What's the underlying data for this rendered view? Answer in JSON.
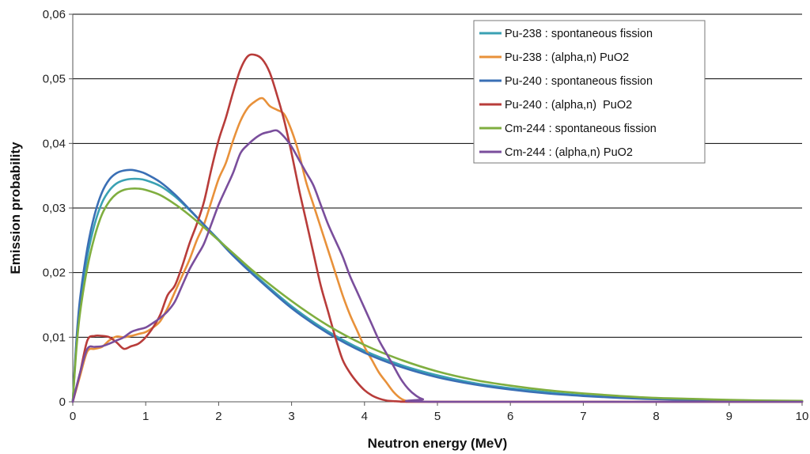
{
  "chart_data": {
    "type": "line",
    "xlabel": "Neutron energy (MeV)",
    "ylabel": "Emission probability",
    "xlim": [
      0,
      10
    ],
    "ylim": [
      0,
      0.06
    ],
    "x_ticks": [
      "0",
      "1",
      "2",
      "3",
      "4",
      "5",
      "6",
      "7",
      "8",
      "9",
      "10"
    ],
    "y_ticks": [
      "0",
      "0,01",
      "0,02",
      "0,03",
      "0,04",
      "0,05",
      "0,06"
    ],
    "grid": "horizontal",
    "legend_position": "top-right",
    "series": [
      {
        "name": "Pu-238 : spontaneous fission",
        "color": "#3aa1b3",
        "x": [
          0,
          0.05,
          0.1,
          0.2,
          0.3,
          0.4,
          0.5,
          0.6,
          0.7,
          0.8,
          0.9,
          1.0,
          1.2,
          1.4,
          1.6,
          1.8,
          2.0,
          2.2,
          2.5,
          3.0,
          3.5,
          4.0,
          4.5,
          5.0,
          5.5,
          6.0,
          6.5,
          7.0,
          7.5,
          8.0,
          8.5,
          9.0,
          9.5,
          10
        ],
        "y": [
          0,
          0.009,
          0.015,
          0.0225,
          0.0275,
          0.0308,
          0.0327,
          0.0338,
          0.0343,
          0.0345,
          0.0345,
          0.0343,
          0.0334,
          0.0318,
          0.0297,
          0.0274,
          0.0251,
          0.0228,
          0.0196,
          0.0148,
          0.0109,
          0.0079,
          0.0057,
          0.0041,
          0.0029,
          0.0021,
          0.0015,
          0.001,
          0.0007,
          0.0005,
          0.00035,
          0.00025,
          0.00017,
          0.0001
        ]
      },
      {
        "name": "Pu-238 : (alpha,n) PuO2",
        "color": "#e8913a",
        "x": [
          0,
          0.1,
          0.2,
          0.3,
          0.4,
          0.5,
          0.6,
          0.7,
          0.8,
          0.9,
          1.0,
          1.1,
          1.2,
          1.3,
          1.4,
          1.5,
          1.6,
          1.7,
          1.8,
          1.9,
          2.0,
          2.1,
          2.2,
          2.3,
          2.4,
          2.5,
          2.6,
          2.7,
          2.8,
          2.9,
          3.0,
          3.1,
          3.2,
          3.3,
          3.4,
          3.5,
          3.6,
          3.7,
          3.8,
          3.9,
          4.0,
          4.1,
          4.2,
          4.3,
          4.4,
          4.5,
          4.6,
          4.8,
          5.0,
          10
        ],
        "y": [
          0,
          0.004,
          0.0078,
          0.0082,
          0.0085,
          0.0095,
          0.0101,
          0.01,
          0.0102,
          0.0105,
          0.0108,
          0.0115,
          0.0125,
          0.0145,
          0.017,
          0.0195,
          0.022,
          0.025,
          0.0275,
          0.031,
          0.0345,
          0.037,
          0.0405,
          0.0435,
          0.0455,
          0.0465,
          0.047,
          0.0458,
          0.0452,
          0.0445,
          0.042,
          0.0385,
          0.034,
          0.0305,
          0.027,
          0.0235,
          0.02,
          0.0165,
          0.0135,
          0.011,
          0.0085,
          0.0065,
          0.0045,
          0.003,
          0.0015,
          0.0005,
          0.0001,
          0,
          0,
          0
        ]
      },
      {
        "name": "Pu-240 : spontaneous fission",
        "color": "#3a6fb5",
        "x": [
          0,
          0.05,
          0.1,
          0.2,
          0.3,
          0.4,
          0.5,
          0.6,
          0.7,
          0.8,
          0.9,
          1.0,
          1.2,
          1.4,
          1.6,
          1.8,
          2.0,
          2.2,
          2.5,
          3.0,
          3.5,
          4.0,
          4.5,
          5.0,
          5.5,
          6.0,
          6.5,
          7.0,
          7.5,
          8.0,
          8.5,
          9.0,
          9.5,
          10
        ],
        "y": [
          0,
          0.0095,
          0.016,
          0.0238,
          0.029,
          0.0324,
          0.0344,
          0.0354,
          0.0358,
          0.0359,
          0.0357,
          0.0353,
          0.034,
          0.0321,
          0.0298,
          0.0274,
          0.025,
          0.0226,
          0.0194,
          0.0145,
          0.0106,
          0.0076,
          0.0054,
          0.0038,
          0.0027,
          0.0019,
          0.0013,
          0.0009,
          0.0006,
          0.0004,
          0.00028,
          0.0002,
          0.00013,
          0.0001
        ]
      },
      {
        "name": "Pu-240 : (alpha,n)  PuO2",
        "color": "#b83c3a",
        "x": [
          0,
          0.1,
          0.2,
          0.3,
          0.4,
          0.5,
          0.6,
          0.7,
          0.8,
          0.9,
          1.0,
          1.1,
          1.2,
          1.3,
          1.4,
          1.5,
          1.6,
          1.7,
          1.8,
          1.9,
          2.0,
          2.1,
          2.2,
          2.3,
          2.4,
          2.5,
          2.6,
          2.7,
          2.8,
          2.9,
          3.0,
          3.1,
          3.2,
          3.3,
          3.4,
          3.5,
          3.6,
          3.7,
          3.8,
          3.9,
          4.0,
          4.1,
          4.2,
          4.3,
          4.4,
          4.6,
          5.0,
          10
        ],
        "y": [
          0,
          0.0045,
          0.0095,
          0.0102,
          0.0102,
          0.01,
          0.0092,
          0.0082,
          0.0086,
          0.009,
          0.01,
          0.0115,
          0.0135,
          0.0165,
          0.018,
          0.021,
          0.0245,
          0.0275,
          0.031,
          0.036,
          0.0405,
          0.044,
          0.048,
          0.0515,
          0.0535,
          0.0537,
          0.053,
          0.051,
          0.0475,
          0.0435,
          0.0385,
          0.033,
          0.028,
          0.023,
          0.018,
          0.014,
          0.01,
          0.0065,
          0.0045,
          0.003,
          0.0018,
          0.001,
          0.0005,
          0.0002,
          0.0001,
          0,
          0,
          0
        ]
      },
      {
        "name": "Cm-244 : spontaneous fission",
        "color": "#7fae3f",
        "x": [
          0,
          0.05,
          0.1,
          0.2,
          0.3,
          0.4,
          0.5,
          0.6,
          0.7,
          0.8,
          0.9,
          1.0,
          1.2,
          1.4,
          1.6,
          1.8,
          2.0,
          2.2,
          2.5,
          3.0,
          3.5,
          4.0,
          4.5,
          5.0,
          5.5,
          6.0,
          6.5,
          7.0,
          7.5,
          8.0,
          8.5,
          9.0,
          9.5,
          10
        ],
        "y": [
          0,
          0.0082,
          0.0138,
          0.0208,
          0.0256,
          0.029,
          0.031,
          0.0322,
          0.0328,
          0.033,
          0.033,
          0.0328,
          0.032,
          0.0306,
          0.0289,
          0.027,
          0.025,
          0.023,
          0.02,
          0.0156,
          0.0118,
          0.0088,
          0.0065,
          0.0047,
          0.0034,
          0.0025,
          0.0018,
          0.0013,
          0.0009,
          0.0006,
          0.00045,
          0.0003,
          0.0002,
          0.00015
        ]
      },
      {
        "name": "Cm-244 : (alpha,n) PuO2",
        "color": "#7a4e9c",
        "x": [
          0,
          0.1,
          0.2,
          0.3,
          0.4,
          0.5,
          0.6,
          0.7,
          0.8,
          0.9,
          1.0,
          1.1,
          1.2,
          1.3,
          1.4,
          1.5,
          1.6,
          1.7,
          1.8,
          1.9,
          2.0,
          2.1,
          2.2,
          2.3,
          2.4,
          2.5,
          2.6,
          2.7,
          2.8,
          2.9,
          3.0,
          3.1,
          3.2,
          3.3,
          3.4,
          3.5,
          3.6,
          3.7,
          3.8,
          3.9,
          4.0,
          4.1,
          4.2,
          4.3,
          4.4,
          4.5,
          4.6,
          4.7,
          4.8,
          5.0,
          10
        ],
        "y": [
          0,
          0.0045,
          0.0082,
          0.0085,
          0.0086,
          0.009,
          0.0095,
          0.01,
          0.0108,
          0.0112,
          0.0115,
          0.0122,
          0.013,
          0.014,
          0.0155,
          0.018,
          0.0205,
          0.0225,
          0.0245,
          0.0275,
          0.0305,
          0.033,
          0.0355,
          0.0385,
          0.0398,
          0.0408,
          0.0415,
          0.0418,
          0.042,
          0.041,
          0.0395,
          0.0375,
          0.0355,
          0.0335,
          0.0305,
          0.0275,
          0.025,
          0.0225,
          0.0195,
          0.017,
          0.0145,
          0.012,
          0.0095,
          0.0075,
          0.0055,
          0.0035,
          0.002,
          0.001,
          0.0004,
          0,
          0
        ]
      }
    ]
  }
}
